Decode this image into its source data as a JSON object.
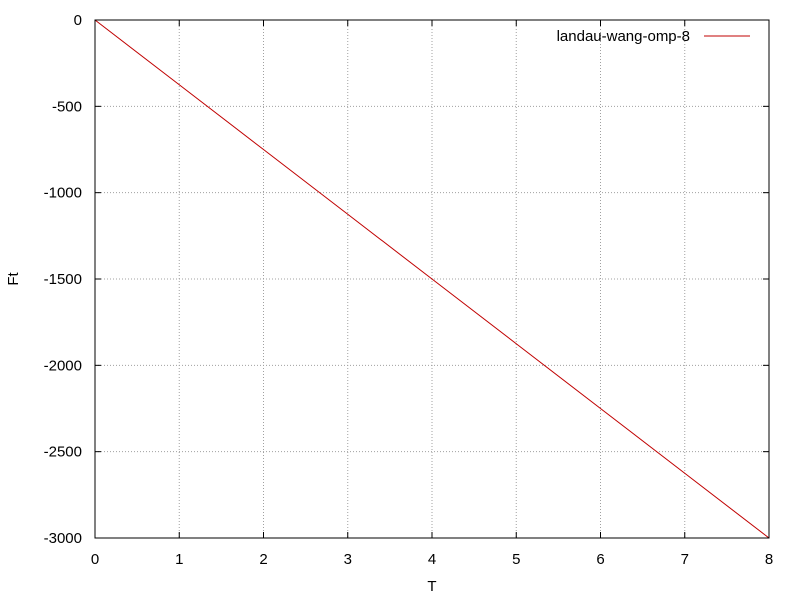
{
  "chart_data": {
    "type": "line",
    "title": "",
    "xlabel": "T",
    "ylabel": "Ft",
    "xlim": [
      0,
      8
    ],
    "ylim": [
      -3000,
      0
    ],
    "xticks": [
      0,
      1,
      2,
      3,
      4,
      5,
      6,
      7,
      8
    ],
    "yticks": [
      0,
      -500,
      -1000,
      -1500,
      -2000,
      -2500,
      -3000
    ],
    "xtick_labels": [
      "0",
      "1",
      "2",
      "3",
      "4",
      "5",
      "6",
      "7",
      "8"
    ],
    "ytick_labels": [
      "0",
      "-500",
      "-1000",
      "-1500",
      "-2000",
      "-2500",
      "-3000"
    ],
    "grid": true,
    "legend_position": "top-right",
    "series": [
      {
        "name": "landau-wang-omp-8",
        "color": "#c00000",
        "x": [
          0,
          1,
          2,
          3,
          4,
          5,
          6,
          7,
          8
        ],
        "y": [
          0,
          -375,
          -750,
          -1125,
          -1500,
          -1875,
          -2250,
          -2625,
          -3000
        ]
      }
    ]
  }
}
